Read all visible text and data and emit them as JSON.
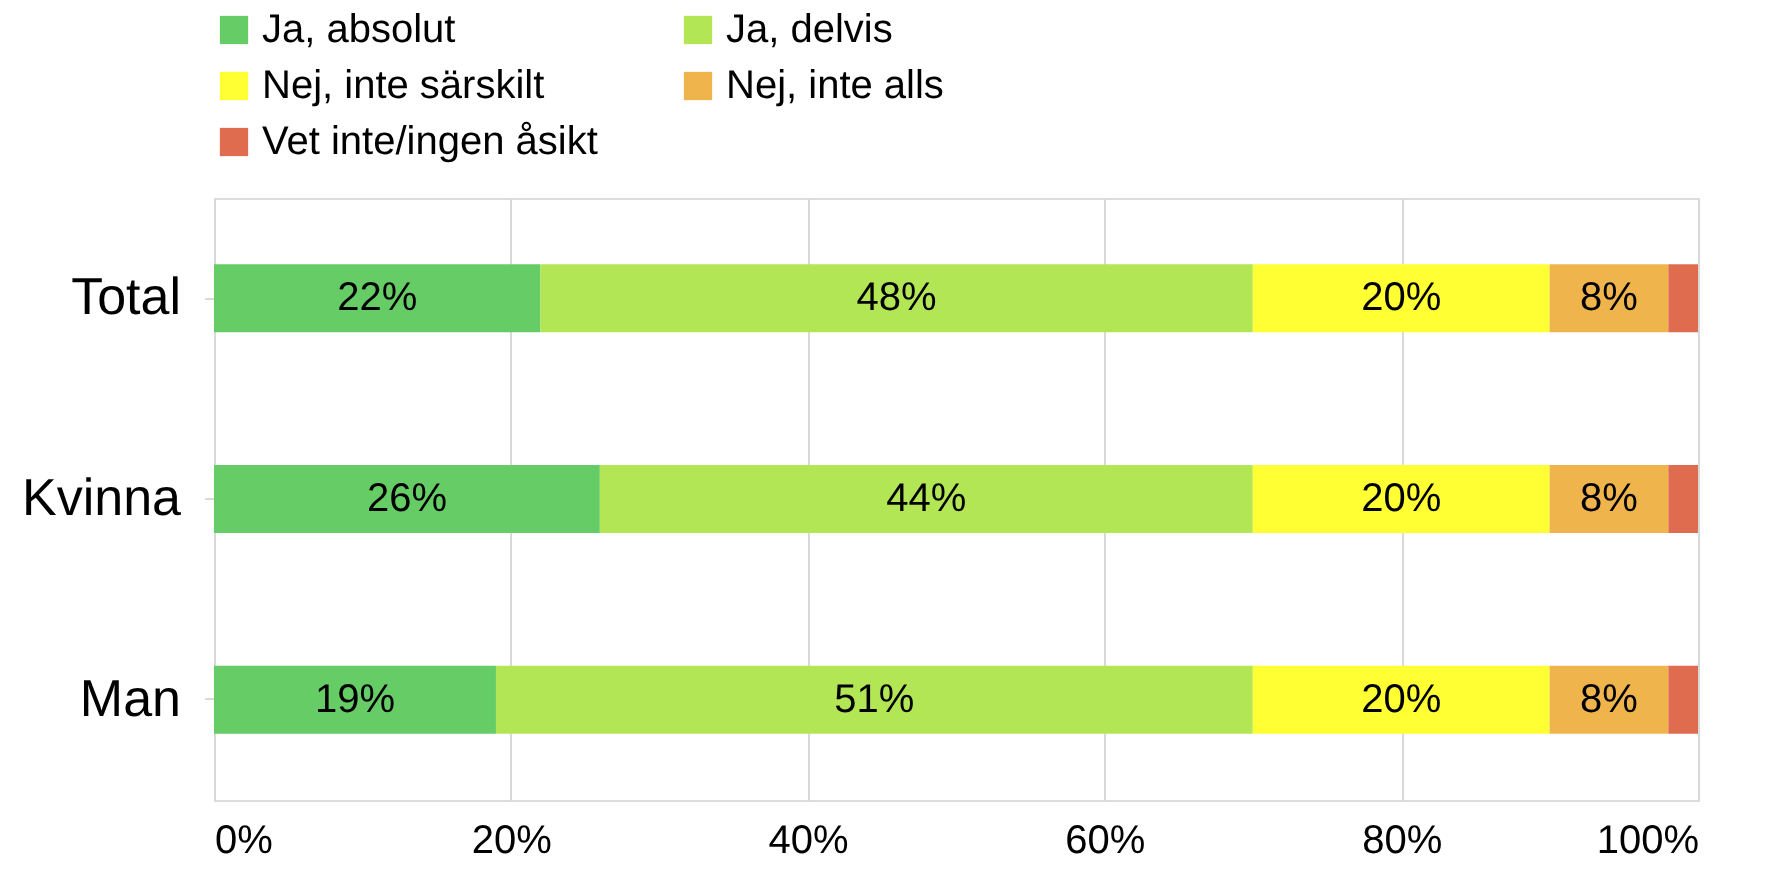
{
  "chart_data": {
    "type": "bar",
    "orientation": "horizontal",
    "stacked": true,
    "categories": [
      "Total",
      "Kvinna",
      "Man"
    ],
    "series": [
      {
        "name": "Ja, absolut",
        "color": "#66cc66",
        "values": [
          22,
          26,
          19
        ],
        "value_labels": [
          "22%",
          "26%",
          "19%"
        ]
      },
      {
        "name": "Ja, delvis",
        "color": "#b3e655",
        "values": [
          48,
          44,
          51
        ],
        "value_labels": [
          "48%",
          "44%",
          "51%"
        ]
      },
      {
        "name": "Nej, inte särskilt",
        "color": "#ffff33",
        "values": [
          20,
          20,
          20
        ],
        "value_labels": [
          "20%",
          "20%",
          "20%"
        ]
      },
      {
        "name": "Nej, inte alls",
        "color": "#f0b44c",
        "values": [
          8,
          8,
          8
        ],
        "value_labels": [
          "8%",
          "8%",
          "8%"
        ]
      },
      {
        "name": "Vet inte/ingen åsikt",
        "color": "#e06c50",
        "values": [
          2,
          2,
          2
        ],
        "value_labels": [
          null,
          null,
          null
        ]
      }
    ],
    "xlim": [
      0,
      100
    ],
    "xticks": [
      {
        "value": 0,
        "label": "0%"
      },
      {
        "value": 20,
        "label": "20%"
      },
      {
        "value": 40,
        "label": "40%"
      },
      {
        "value": 60,
        "label": "60%"
      },
      {
        "value": 80,
        "label": "80%"
      },
      {
        "value": 100,
        "label": "100%"
      }
    ],
    "grid": "x",
    "legend": "top"
  }
}
